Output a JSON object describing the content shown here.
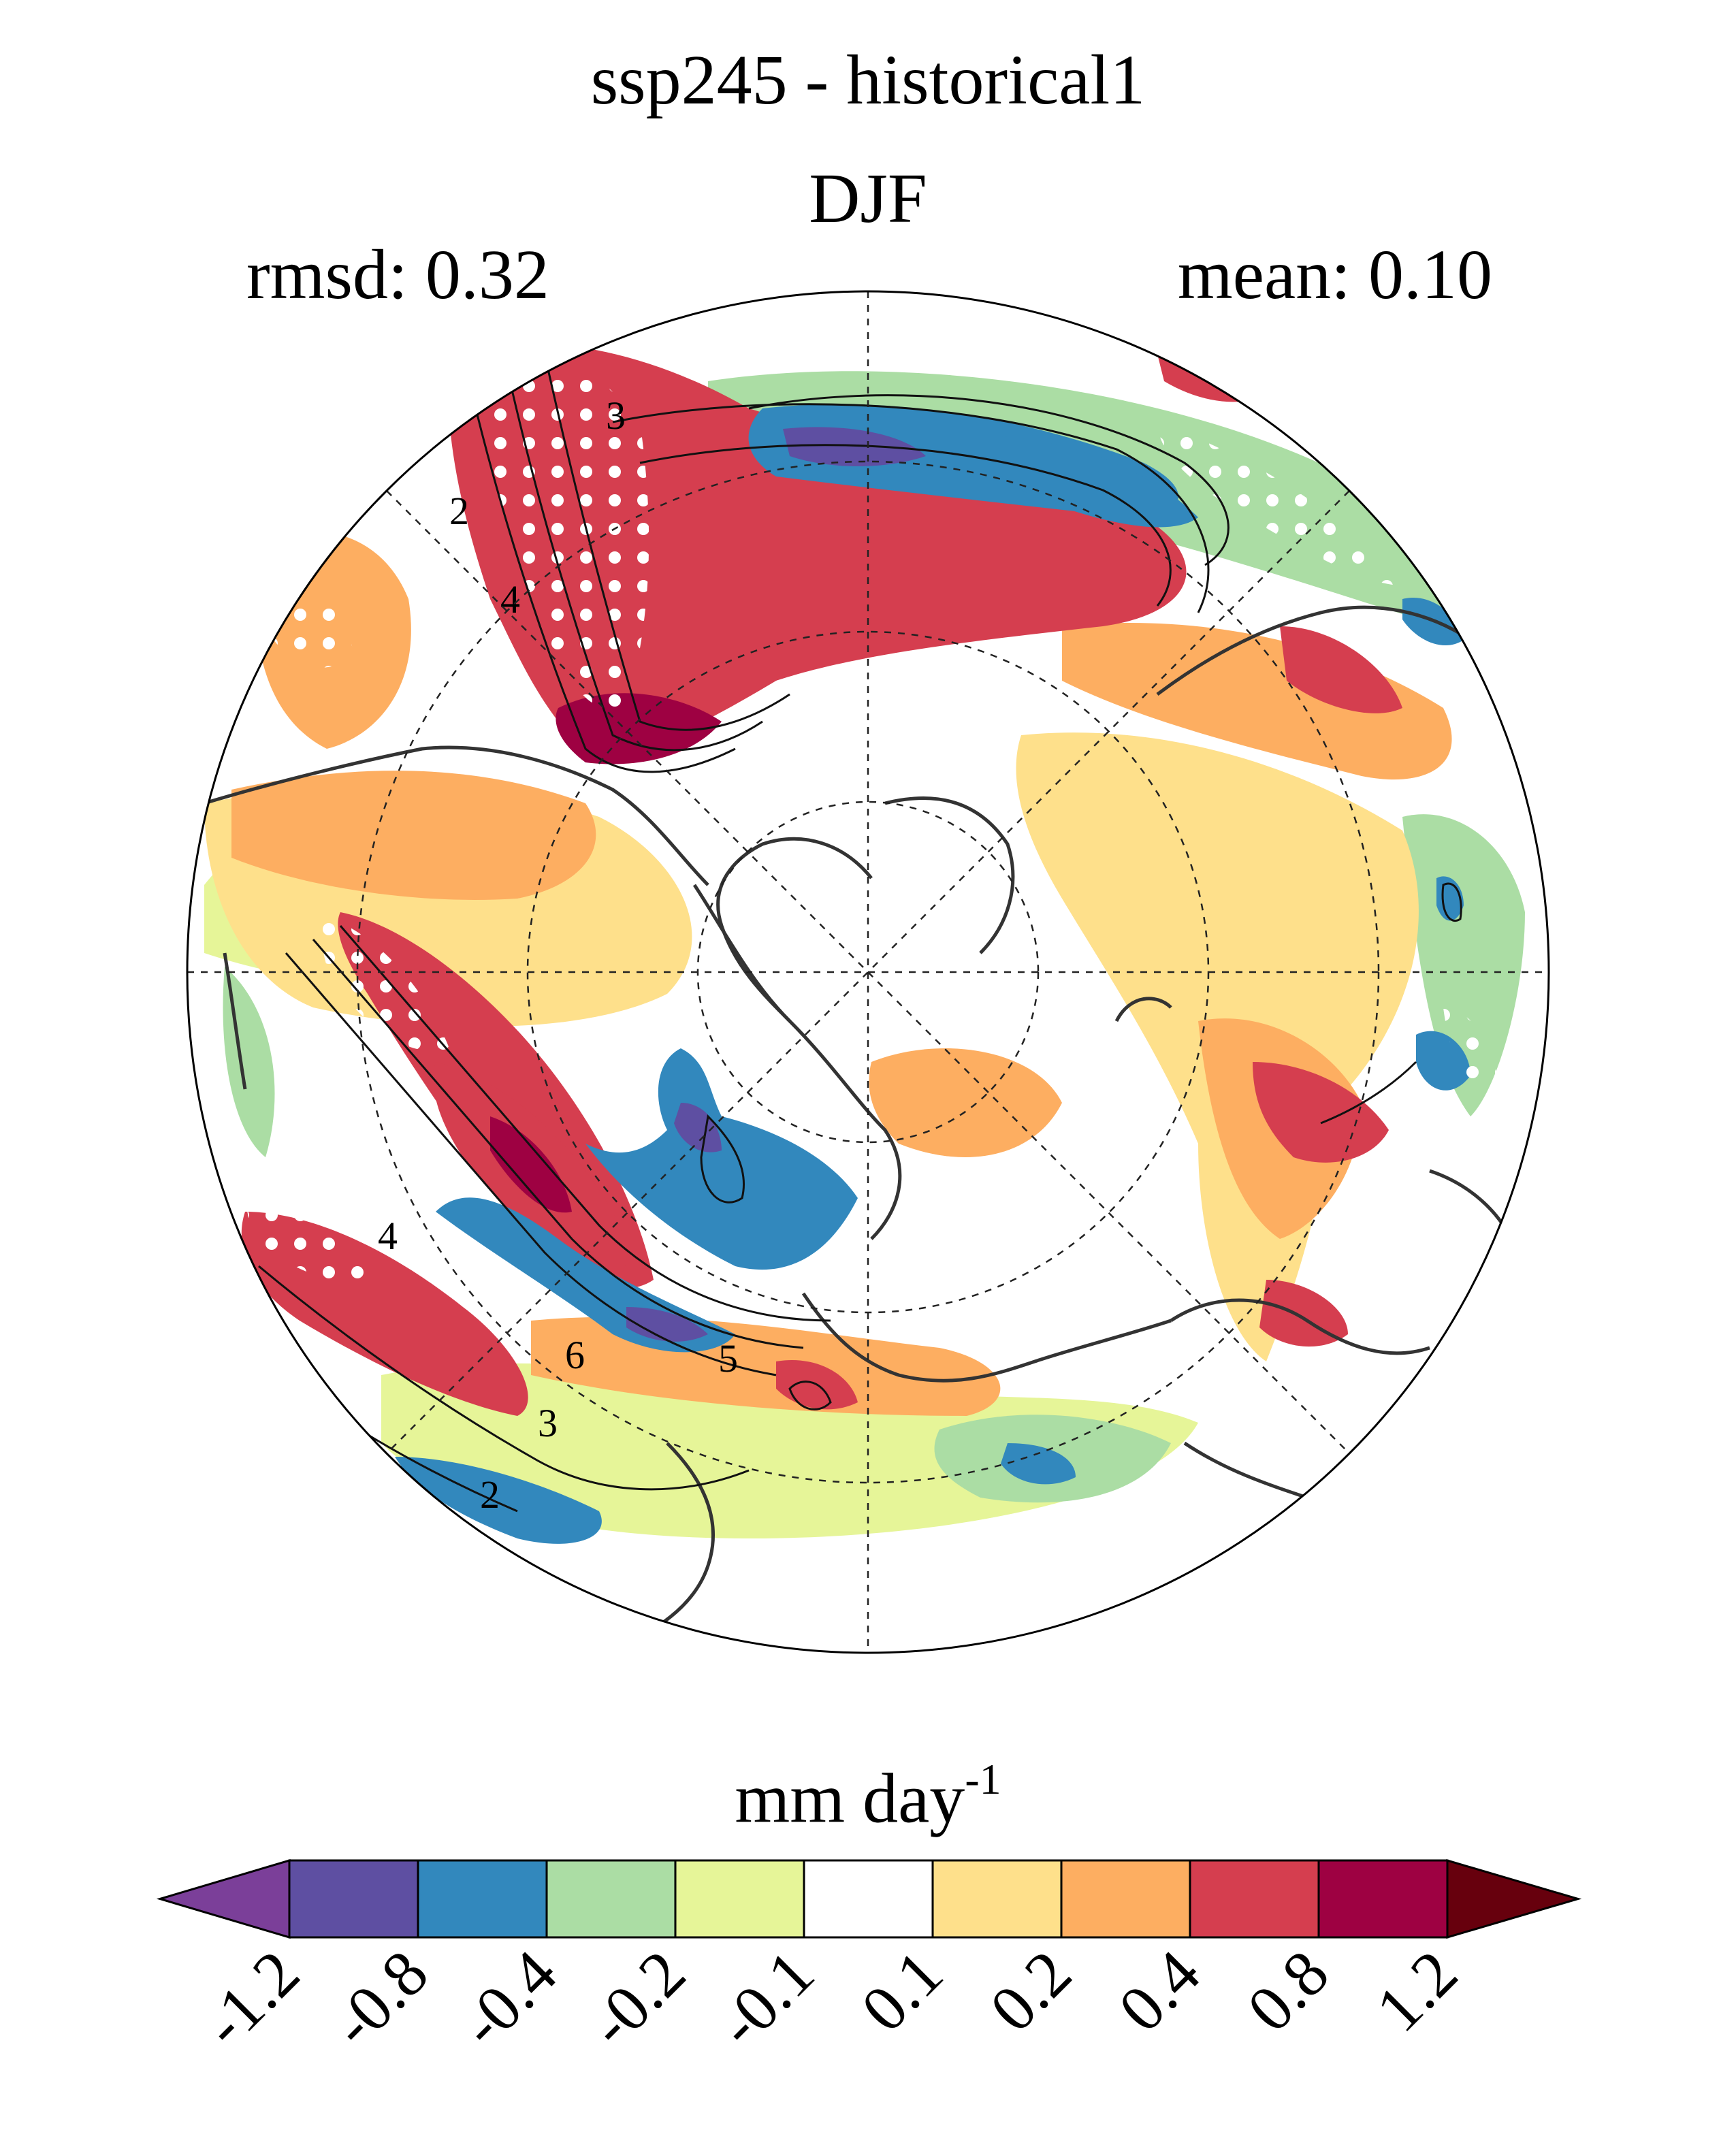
{
  "header": {
    "title": "ssp245 - historical1",
    "season": "DJF",
    "rmsd_label": "rmsd: 0.32",
    "mean_label": "mean: 0.10"
  },
  "colorbar": {
    "units_main": "mm day",
    "units_exp": "-1",
    "ticks": [
      "-1.2",
      "-0.8",
      "-0.4",
      "-0.2",
      "-0.1",
      "0.1",
      "0.2",
      "0.4",
      "0.8",
      "1.2"
    ],
    "low_extend_color": "#7b3f99",
    "high_extend_color": "#67000d",
    "bin_colors": [
      "#5e4fa2",
      "#3288bd",
      "#abdda4",
      "#e6f598",
      "#ffffff",
      "#fee08b",
      "#fdae61",
      "#d53e4f",
      "#9e0142"
    ]
  },
  "map": {
    "projection": "north-polar-stereographic",
    "contour_labels": [
      "2",
      "3",
      "4",
      "5",
      "6",
      "2",
      "3",
      "4"
    ]
  }
}
